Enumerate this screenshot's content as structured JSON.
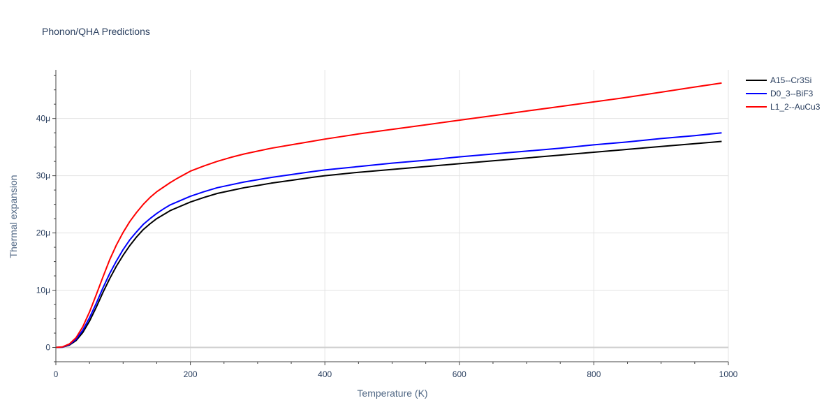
{
  "chart_data": {
    "type": "line",
    "title": "Phonon/QHA Predictions",
    "xlabel": "Temperature (K)",
    "ylabel": "Thermal expansion",
    "xlim": [
      0,
      1000
    ],
    "ylim": [
      -2.5,
      48.5
    ],
    "x_ticks": [
      0,
      200,
      400,
      600,
      800,
      1000
    ],
    "x_tick_labels": [
      "0",
      "200",
      "400",
      "600",
      "800",
      "1000"
    ],
    "y_ticks": [
      0,
      10,
      20,
      30,
      40
    ],
    "y_tick_labels": [
      "0",
      "10μ",
      "20μ",
      "30μ",
      "40μ"
    ],
    "grid": true,
    "legend_position": "top-right",
    "series": [
      {
        "name": "A15--Cr3Si",
        "color": "#000000",
        "x": [
          0,
          10,
          20,
          30,
          40,
          50,
          60,
          70,
          80,
          90,
          100,
          110,
          120,
          130,
          140,
          150,
          160,
          170,
          180,
          200,
          220,
          240,
          260,
          280,
          300,
          320,
          350,
          380,
          400,
          450,
          500,
          550,
          600,
          650,
          700,
          750,
          800,
          850,
          900,
          950,
          990
        ],
        "y": [
          0,
          0.05,
          0.4,
          1.2,
          2.6,
          4.6,
          7.0,
          9.6,
          12.0,
          14.2,
          16.1,
          17.8,
          19.3,
          20.6,
          21.6,
          22.5,
          23.2,
          23.9,
          24.4,
          25.4,
          26.2,
          26.9,
          27.4,
          27.9,
          28.3,
          28.7,
          29.2,
          29.7,
          30.0,
          30.6,
          31.1,
          31.6,
          32.1,
          32.6,
          33.1,
          33.6,
          34.1,
          34.6,
          35.1,
          35.6,
          36.0
        ]
      },
      {
        "name": "D0_3--BiF3",
        "color": "#0000ff",
        "x": [
          0,
          10,
          20,
          30,
          40,
          50,
          60,
          70,
          80,
          90,
          100,
          110,
          120,
          130,
          140,
          150,
          160,
          170,
          180,
          200,
          220,
          240,
          260,
          280,
          300,
          320,
          350,
          380,
          400,
          450,
          500,
          550,
          600,
          650,
          700,
          750,
          800,
          850,
          900,
          950,
          990
        ],
        "y": [
          0,
          0.05,
          0.5,
          1.4,
          3.0,
          5.2,
          7.7,
          10.4,
          12.9,
          15.1,
          17.1,
          18.8,
          20.2,
          21.5,
          22.5,
          23.4,
          24.2,
          24.9,
          25.4,
          26.4,
          27.2,
          27.9,
          28.4,
          28.9,
          29.3,
          29.7,
          30.2,
          30.7,
          31.0,
          31.6,
          32.2,
          32.7,
          33.3,
          33.8,
          34.3,
          34.8,
          35.4,
          35.9,
          36.5,
          37.0,
          37.5
        ]
      },
      {
        "name": "L1_2--AuCu3",
        "color": "#ff0000",
        "x": [
          0,
          10,
          20,
          30,
          40,
          50,
          60,
          70,
          80,
          90,
          100,
          110,
          120,
          130,
          140,
          150,
          160,
          170,
          180,
          200,
          220,
          240,
          260,
          280,
          300,
          320,
          350,
          380,
          400,
          450,
          500,
          550,
          600,
          650,
          700,
          750,
          800,
          850,
          900,
          950,
          990
        ],
        "y": [
          0,
          0.1,
          0.6,
          1.7,
          3.6,
          6.2,
          9.2,
          12.3,
          15.3,
          17.9,
          20.1,
          22.0,
          23.6,
          25.0,
          26.2,
          27.2,
          28.0,
          28.8,
          29.5,
          30.8,
          31.7,
          32.5,
          33.2,
          33.8,
          34.3,
          34.8,
          35.4,
          36.0,
          36.4,
          37.3,
          38.1,
          38.9,
          39.7,
          40.5,
          41.3,
          42.1,
          42.9,
          43.7,
          44.6,
          45.5,
          46.2
        ]
      }
    ]
  }
}
